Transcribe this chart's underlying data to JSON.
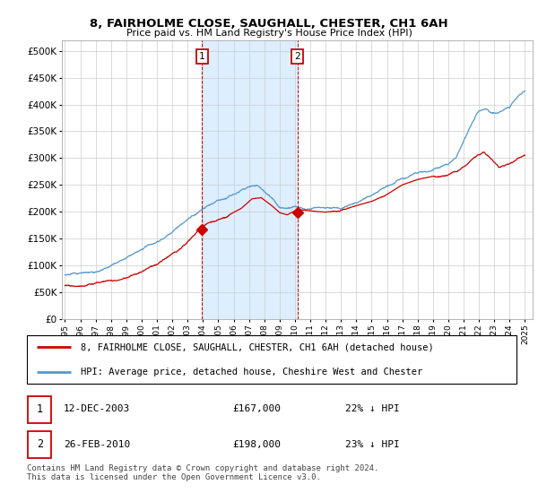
{
  "title1": "8, FAIRHOLME CLOSE, SAUGHALL, CHESTER, CH1 6AH",
  "title2": "Price paid vs. HM Land Registry's House Price Index (HPI)",
  "ylabel_ticks": [
    "£0",
    "£50K",
    "£100K",
    "£150K",
    "£200K",
    "£250K",
    "£300K",
    "£350K",
    "£400K",
    "£450K",
    "£500K"
  ],
  "ytick_vals": [
    0,
    50000,
    100000,
    150000,
    200000,
    250000,
    300000,
    350000,
    400000,
    450000,
    500000
  ],
  "ylim": [
    0,
    520000
  ],
  "xlim_start": 1994.8,
  "xlim_end": 2025.5,
  "hpi_color": "#5599cc",
  "price_color": "#cc0000",
  "shaded_color": "#ddeeff",
  "marker1_x": 2003.95,
  "marker1_y": 167000,
  "marker2_x": 2010.15,
  "marker2_y": 198000,
  "legend_line1": "8, FAIRHOLME CLOSE, SAUGHALL, CHESTER, CH1 6AH (detached house)",
  "legend_line2": "HPI: Average price, detached house, Cheshire West and Chester",
  "marker1_date": "12-DEC-2003",
  "marker1_price": "£167,000",
  "marker1_hpi": "22% ↓ HPI",
  "marker2_date": "26-FEB-2010",
  "marker2_price": "£198,000",
  "marker2_hpi": "23% ↓ HPI",
  "footnote": "Contains HM Land Registry data © Crown copyright and database right 2024.\nThis data is licensed under the Open Government Licence v3.0.",
  "x_years": [
    1995,
    1996,
    1997,
    1998,
    1999,
    2000,
    2001,
    2002,
    2003,
    2004,
    2005,
    2006,
    2007,
    2008,
    2009,
    2010,
    2011,
    2012,
    2013,
    2014,
    2015,
    2016,
    2017,
    2018,
    2019,
    2020,
    2021,
    2022,
    2023,
    2024,
    2025
  ]
}
